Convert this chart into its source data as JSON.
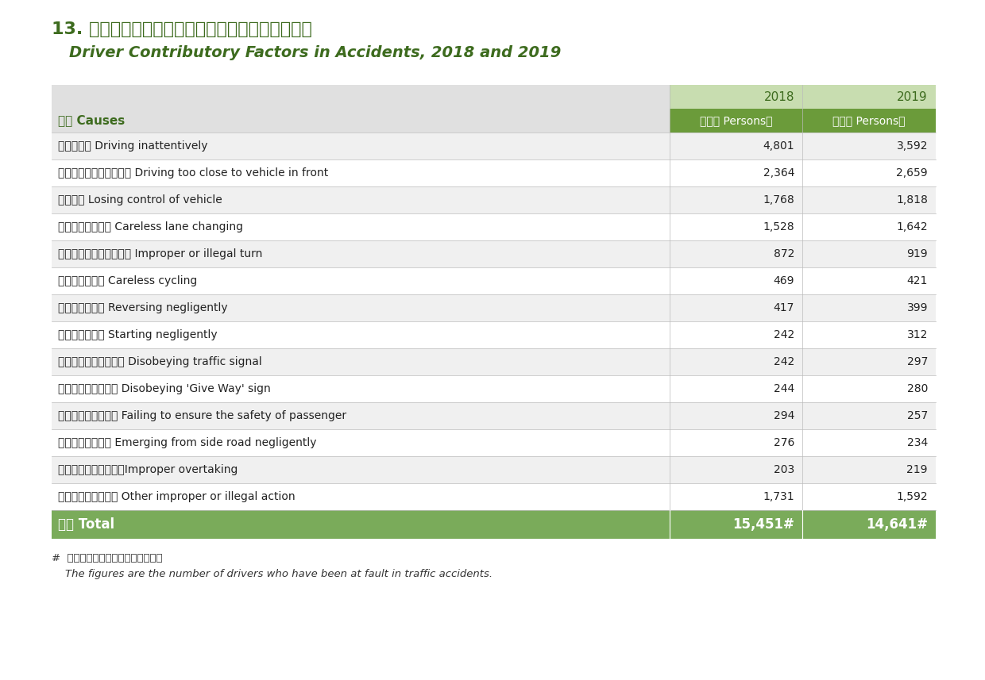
{
  "title_chinese": "13. 二零一八及二零一九年涉及司機的交通意外成因",
  "title_english": "Driver Contributory Factors in Accidents, 2018 and 2019",
  "col_header_label": "原因 Causes",
  "col_header_2018": "2018",
  "col_header_2019": "2019",
  "col_subheader": "（人數 Persons）",
  "rows": [
    {
      "cause": "駕駛不留神 Driving inattentively",
      "v2018": "4,801",
      "v2019": "3,592"
    },
    {
      "cause": "行車時太貼近前面的車輛 Driving too close to vehicle in front",
      "v2018": "2,364",
      "v2019": "2,659"
    },
    {
      "cause": "車輛失控 Losing control of vehicle",
      "v2018": "1,768",
      "v2019": "1,818"
    },
    {
      "cause": "不小心轉換行車線 Careless lane changing",
      "v2018": "1,528",
      "v2019": "1,642"
    },
    {
      "cause": "不適當地或不合法地轉向 Improper or illegal turn",
      "v2018": "872",
      "v2019": "919"
    },
    {
      "cause": "不小心騎踏單車 Careless cycling",
      "v2018": "469",
      "v2019": "421"
    },
    {
      "cause": "疏忽地倒後行車 Reversing negligently",
      "v2018": "417",
      "v2019": "399"
    },
    {
      "cause": "疏忽地起動車輛 Starting negligently",
      "v2018": "242",
      "v2019": "312"
    },
    {
      "cause": "不遵照交通燈號的指示 Disobeying traffic signal",
      "v2018": "242",
      "v2019": "297"
    },
    {
      "cause": "不遵照「讓路」標誌 Disobeying 'Give Way' sign",
      "v2018": "244",
      "v2019": "280"
    },
    {
      "cause": "沒有確保乘客的安全 Failing to ensure the safety of passenger",
      "v2018": "294",
      "v2019": "257"
    },
    {
      "cause": "疏忽地從旁路駛出 Emerging from side road negligently",
      "v2018": "276",
      "v2019": "234"
    },
    {
      "cause": "不適當地超車（扒頭）Improper overtaking",
      "v2018": "203",
      "v2019": "219"
    },
    {
      "cause": "其他不當或違法行為 Other improper or illegal action",
      "v2018": "1,731",
      "v2019": "1,592"
    }
  ],
  "total_label": "合計 Total",
  "total_2018": "15,451#",
  "total_2019": "14,641#",
  "footnote_line1": "#  數字為引致交通意外的司機人數。",
  "footnote_line2": "    The figures are the number of drivers who have been at fault in traffic accidents.",
  "color_dark_green": "#3d6b1e",
  "color_medium_green": "#6b9b3a",
  "color_light_green_bg": "#c8ddb0",
  "color_row_bg_light": "#f0f0f0",
  "color_row_bg_white": "#ffffff",
  "color_total_bg": "#7aab5a",
  "color_top_header_bg": "#e0e0e0",
  "background_color": "#ffffff"
}
